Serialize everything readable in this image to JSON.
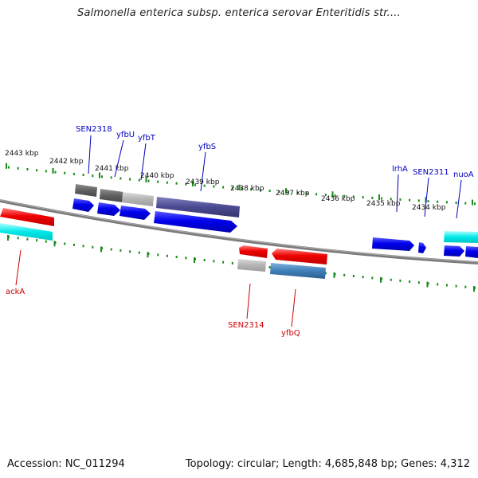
{
  "title": "Salmonella enterica subsp. enterica serovar Enteritidis str....",
  "footer": {
    "accession": "Accession: NC_011294",
    "topology": "Topology: circular; Length: 4,685,848 bp; Genes: 4,312"
  },
  "colors": {
    "background": "#ffffff",
    "backbone": "#808080",
    "tick": "#1a8a1a",
    "plus_label": "#0000c0",
    "minus_label": "#cc0000",
    "forward_cds": "#0000ee",
    "reverse_cds": "#ee0000",
    "cyan_feature": "#00e8e8",
    "gray_feature": "#606060",
    "lightgray_feature": "#b4b4b4",
    "purple_feature": "#4a4a90",
    "steelblue_feature": "#3f7fb8"
  },
  "kbp_ticks": [
    {
      "label": "2443 kbp"
    },
    {
      "label": "2442 kbp"
    },
    {
      "label": "2441 kbp"
    },
    {
      "label": "2440 kbp"
    },
    {
      "label": "2439 kbp"
    },
    {
      "label": "2438 kbp"
    },
    {
      "label": "2437 kbp"
    },
    {
      "label": "2436 kbp"
    },
    {
      "label": "2435 kbp"
    },
    {
      "label": "2434 kbp"
    }
  ],
  "gene_labels": [
    {
      "name": "SEN2318",
      "strand": "plus"
    },
    {
      "name": "yfbU",
      "strand": "plus"
    },
    {
      "name": "yfbT",
      "strand": "plus"
    },
    {
      "name": "yfbS",
      "strand": "plus"
    },
    {
      "name": "lrhA",
      "strand": "plus"
    },
    {
      "name": "SEN2311",
      "strand": "plus"
    },
    {
      "name": "nuoA",
      "strand": "plus"
    },
    {
      "name": "ackA",
      "strand": "minus"
    },
    {
      "name": "SEN2314",
      "strand": "minus"
    },
    {
      "name": "yfbQ",
      "strand": "minus"
    }
  ]
}
